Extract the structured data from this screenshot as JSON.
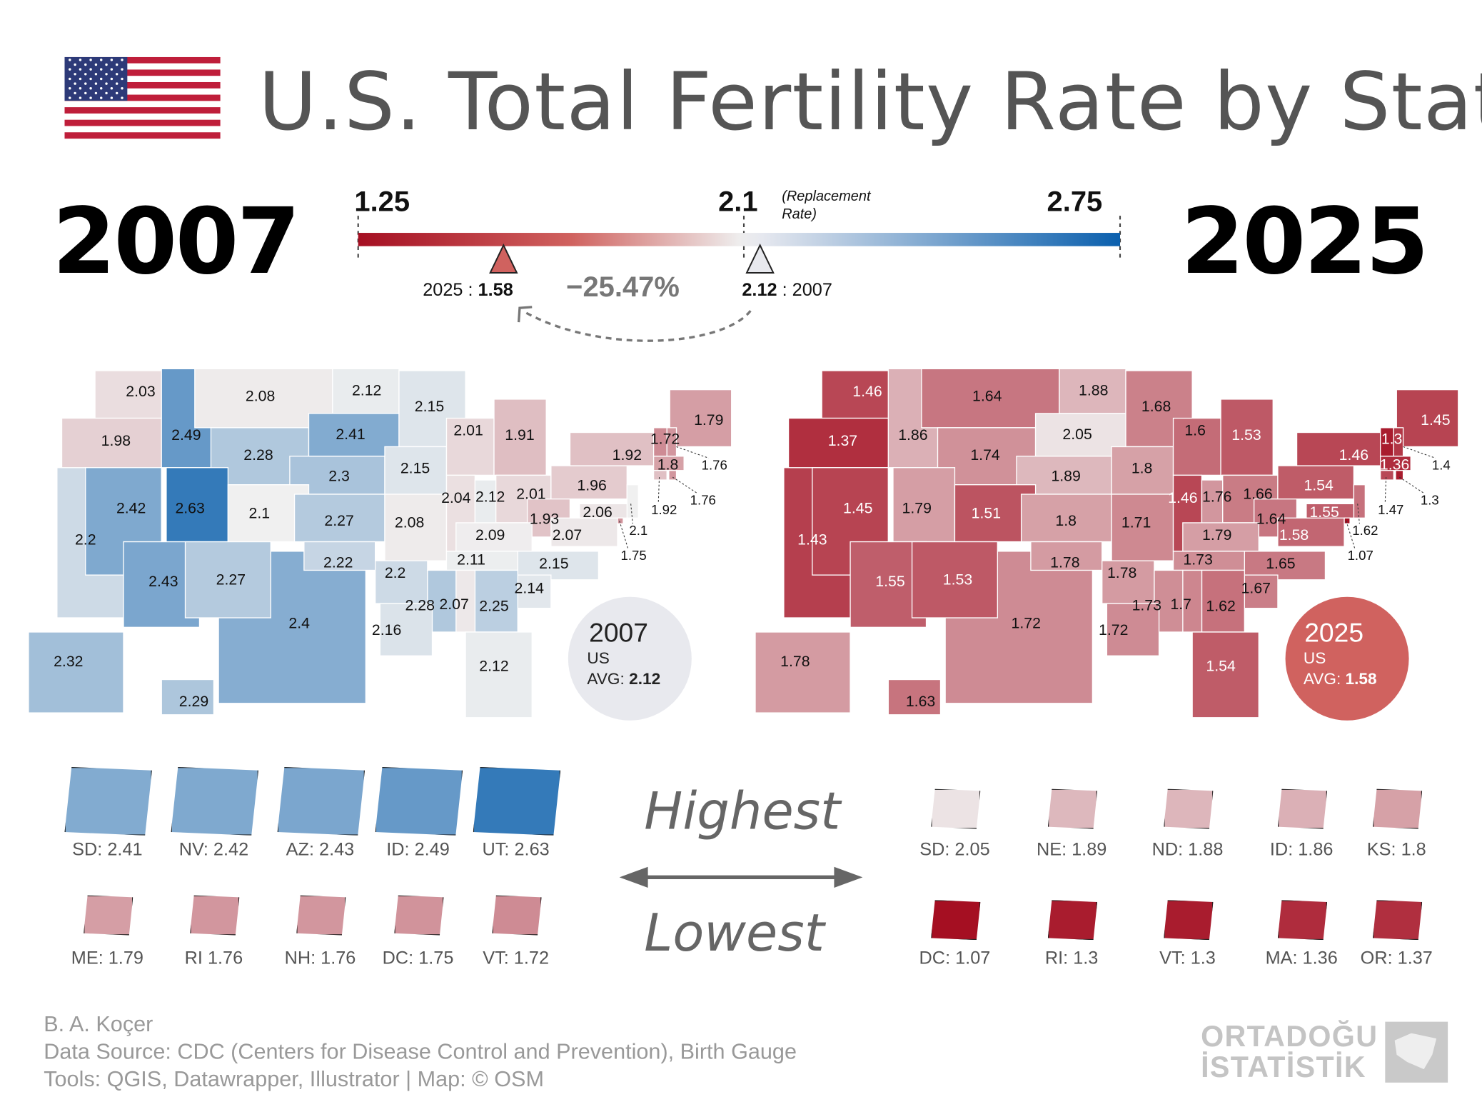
{
  "title": "U.S. Total Fertility Rate by State",
  "year_left": "2007",
  "year_right": "2025",
  "scale": {
    "min_label": "1.25",
    "mid_label": "2.1",
    "mid_note": "(Replacement Rate)",
    "max_label": "2.75",
    "min": 1.25,
    "mid": 2.1,
    "max": 2.75,
    "colors": {
      "low": "#a50f22",
      "mid": "#f0f0f0",
      "high": "#0a5fad"
    },
    "marker_2025": {
      "prefix": "2025 : ",
      "value": "1.58"
    },
    "marker_2007": {
      "value": "2.12",
      "suffix": " : 2007"
    },
    "change": "−25.47%"
  },
  "map_2007": {
    "WA": 2.03,
    "OR": 1.98,
    "ID": 2.49,
    "MT": 2.08,
    "WY": 2.28,
    "ND": 2.12,
    "SD": 2.41,
    "NE": 2.3,
    "MN": 2.15,
    "IA": 2.15,
    "WI": 2.01,
    "MI": 1.91,
    "NV": 2.42,
    "UT": 2.63,
    "CO": 2.1,
    "CA": 2.2,
    "KS": 2.27,
    "MO": 2.08,
    "IL": 2.04,
    "IN": 2.12,
    "OH": 2.01,
    "PA": 1.96,
    "NY": 1.92,
    "WV": 1.93,
    "VA": 2.07,
    "KY": 2.09,
    "AZ": 2.43,
    "NM": 2.27,
    "OK": 2.22,
    "TX": 2.4,
    "AR": 2.2,
    "TN": 2.11,
    "NC": 2.15,
    "SC": 2.14,
    "GA": 2.25,
    "AL": 2.07,
    "MS": 2.28,
    "LA": 2.16,
    "FL": 2.12,
    "AK": 2.32,
    "HI": 2.29,
    "ME": 1.79,
    "VT": 1.72,
    "NH": 1.76,
    "MA": 1.8,
    "CT": 1.92,
    "RI": 1.76,
    "NJ": 2.1,
    "MD": 2.06,
    "DC": 1.75
  },
  "map_2025": {
    "WA": 1.46,
    "OR": 1.37,
    "ID": 1.86,
    "MT": 1.64,
    "WY": 1.74,
    "ND": 1.88,
    "SD": 2.05,
    "NE": 1.89,
    "MN": 1.68,
    "IA": 1.8,
    "WI": 1.6,
    "MI": 1.53,
    "NV": 1.45,
    "UT": 1.79,
    "CO": 1.51,
    "CA": 1.43,
    "KS": 1.8,
    "MO": 1.71,
    "IL": 1.46,
    "IN": 1.76,
    "OH": 1.66,
    "PA": 1.54,
    "NY": 1.46,
    "WV": 1.64,
    "VA": 1.58,
    "KY": 1.79,
    "AZ": 1.55,
    "NM": 1.53,
    "OK": 1.78,
    "TX": 1.72,
    "AR": 1.78,
    "TN": 1.73,
    "NC": 1.65,
    "SC": 1.67,
    "GA": 1.62,
    "AL": 1.7,
    "MS": 1.73,
    "LA": 1.72,
    "FL": 1.54,
    "AK": 1.78,
    "HI": 1.63,
    "ME": 1.45,
    "VT": 1.3,
    "NH": 1.4,
    "MA": 1.36,
    "CT": 1.47,
    "RI": 1.3,
    "NJ": 1.62,
    "MD": 1.55,
    "DC": 1.07
  },
  "badge_2007": {
    "year": "2007",
    "line1": "US",
    "avg_label": "AVG: ",
    "avg": "2.12",
    "color": "#e8e9ee"
  },
  "badge_2025": {
    "year": "2025",
    "line1": "US",
    "avg_label": "AVG: ",
    "avg": "1.58",
    "color": "#d0625f"
  },
  "center": {
    "highest": "Highest",
    "lowest": "Lowest"
  },
  "highest_2007": [
    {
      "label": "SD: 2.41",
      "value": 2.41
    },
    {
      "label": "NV: 2.42",
      "value": 2.42
    },
    {
      "label": "AZ: 2.43",
      "value": 2.43
    },
    {
      "label": "ID: 2.49",
      "value": 2.49
    },
    {
      "label": "UT: 2.63",
      "value": 2.63
    }
  ],
  "lowest_2007": [
    {
      "label": "ME: 1.79",
      "value": 1.79
    },
    {
      "label": "RI 1.76",
      "value": 1.76
    },
    {
      "label": "NH: 1.76",
      "value": 1.76
    },
    {
      "label": "DC: 1.75",
      "value": 1.75
    },
    {
      "label": "VT: 1.72",
      "value": 1.72
    }
  ],
  "highest_2025": [
    {
      "label": "SD:  2.05",
      "value": 2.05
    },
    {
      "label": "NE:  1.89",
      "value": 1.89
    },
    {
      "label": "ND: 1.88",
      "value": 1.88
    },
    {
      "label": "ID:  1.86",
      "value": 1.86
    },
    {
      "label": "KS:  1.8",
      "value": 1.8
    }
  ],
  "lowest_2025": [
    {
      "label": "DC: 1.07",
      "value": 1.07
    },
    {
      "label": "RI: 1.3",
      "value": 1.3
    },
    {
      "label": "VT: 1.3",
      "value": 1.3
    },
    {
      "label": "MA: 1.36",
      "value": 1.36
    },
    {
      "label": "OR: 1.37",
      "value": 1.37
    }
  ],
  "footer": {
    "author": "B. A. Koçer",
    "source": "Data Source: CDC (Centers for Disease Control and Prevention), Birth Gauge",
    "tools": "Tools: QGIS, Datawrapper, Illustrator | Map: © OSM"
  },
  "logo": {
    "line1": "ORTADOĞU",
    "line2": "İSTATİSTİK"
  }
}
